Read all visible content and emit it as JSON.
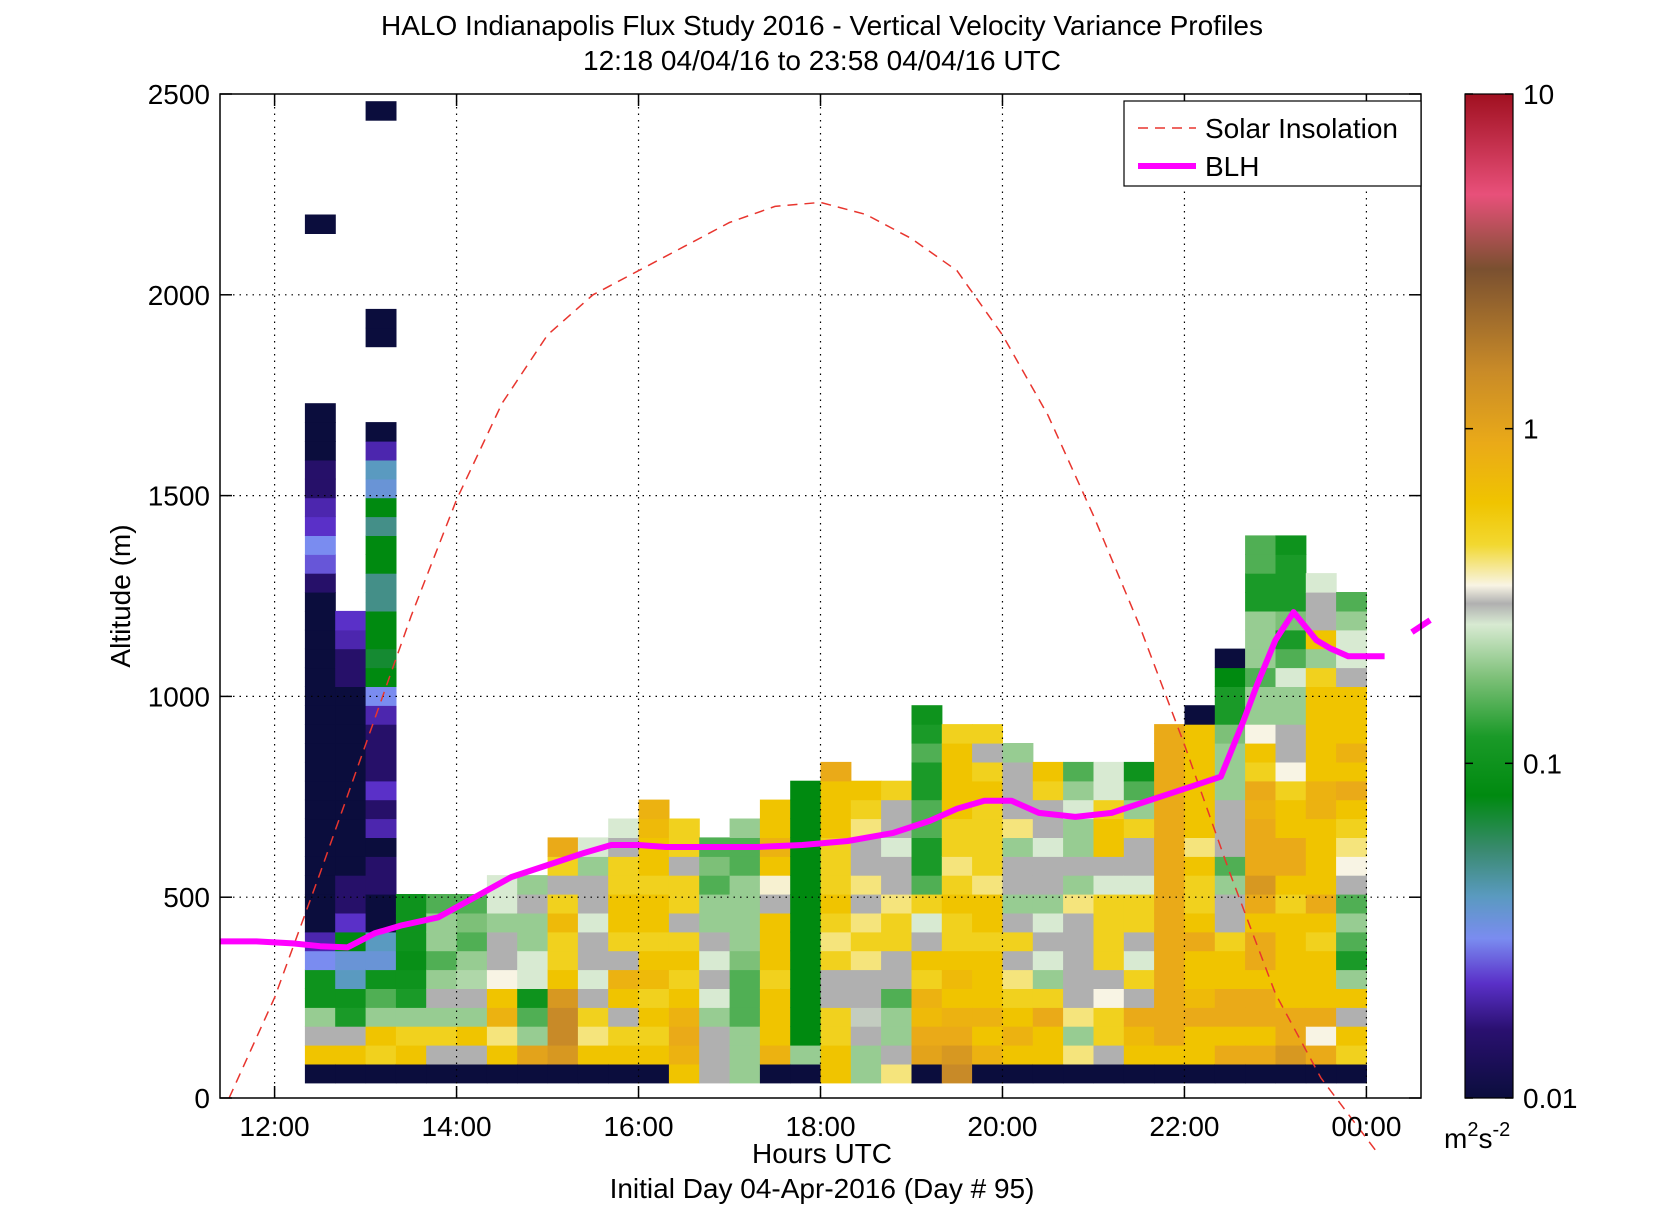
{
  "title": "HALO Indianapolis Flux Study 2016 - Vertical Velocity Variance Profiles",
  "subtitle": "12:18 04/04/16 to 23:58 04/04/16  UTC",
  "chart_data": {
    "type": "heatmap",
    "title": "HALO Indianapolis Flux Study 2016 - Vertical Velocity Variance Profiles",
    "subtitle": "12:18 04/04/16 to 23:58 04/04/16  UTC",
    "xlabel": "Hours UTC",
    "xlabel2": "Initial Day 04-Apr-2016 (Day # 95)",
    "ylabel": "Altitude (m)",
    "xlim": [
      11.4,
      24.6
    ],
    "ylim": [
      0,
      2500
    ],
    "grid": true,
    "x_ticks": [
      {
        "value": 12,
        "label": "12:00"
      },
      {
        "value": 14,
        "label": "14:00"
      },
      {
        "value": 16,
        "label": "16:00"
      },
      {
        "value": 18,
        "label": "18:00"
      },
      {
        "value": 20,
        "label": "20:00"
      },
      {
        "value": 22,
        "label": "22:00"
      },
      {
        "value": 24,
        "label": "00:00"
      }
    ],
    "y_ticks": [
      {
        "value": 0,
        "label": "0"
      },
      {
        "value": 500,
        "label": "500"
      },
      {
        "value": 1000,
        "label": "1000"
      },
      {
        "value": 1500,
        "label": "1500"
      },
      {
        "value": 2000,
        "label": "2000"
      },
      {
        "value": 2500,
        "label": "2500"
      }
    ],
    "colorbar": {
      "scale": "log",
      "range": [
        0.01,
        10
      ],
      "ticks": [
        {
          "value": 0.01,
          "label": "0.01"
        },
        {
          "value": 0.1,
          "label": "0.1"
        },
        {
          "value": 1,
          "label": "1"
        },
        {
          "value": 10,
          "label": "10"
        }
      ],
      "unit_base": "m",
      "unit_sup1": "2",
      "unit_mid": "s",
      "unit_sup2": "-2",
      "stops": [
        {
          "value": 0.01,
          "color": "#0b0d3d"
        },
        {
          "value": 0.016,
          "color": "#2a1070"
        },
        {
          "value": 0.022,
          "color": "#5a30c8"
        },
        {
          "value": 0.03,
          "color": "#7a8cf0"
        },
        {
          "value": 0.04,
          "color": "#5a9ac0"
        },
        {
          "value": 0.055,
          "color": "#3a8a70"
        },
        {
          "value": 0.08,
          "color": "#008a10"
        },
        {
          "value": 0.12,
          "color": "#1a9a28"
        },
        {
          "value": 0.18,
          "color": "#7dc078"
        },
        {
          "value": 0.26,
          "color": "#d8ead2"
        },
        {
          "value": 0.3,
          "color": "#b0b0b0"
        },
        {
          "value": 0.34,
          "color": "#f8f4e4"
        },
        {
          "value": 0.45,
          "color": "#f2d830"
        },
        {
          "value": 0.6,
          "color": "#f0c400"
        },
        {
          "value": 0.9,
          "color": "#eaaa18"
        },
        {
          "value": 1.5,
          "color": "#c88a28"
        },
        {
          "value": 3,
          "color": "#7a5030"
        },
        {
          "value": 5,
          "color": "#e8507a"
        },
        {
          "value": 10,
          "color": "#a01020"
        }
      ]
    },
    "cell_size": {
      "hours": 0.333,
      "meters": 47
    },
    "no_data": null,
    "columns": [
      {
        "t": 12.5,
        "v": [
          0.01,
          0.6,
          0.3,
          0.2,
          0.1,
          0.1,
          0.03,
          0.02,
          0.01,
          0.01,
          0.01,
          0.01,
          0.01,
          0.01,
          0.01,
          0.01,
          0.01,
          0.01,
          0.01,
          0.01,
          0.01,
          0.01,
          0.01,
          0.01,
          0.01,
          0.01,
          0.015,
          0.025,
          0.03,
          0.022,
          0.02,
          0.015,
          0.015,
          0.01,
          0.01,
          0.01,
          null,
          null,
          null,
          null,
          null,
          null,
          null,
          null,
          null,
          0.01
        ]
      },
      {
        "t": 12.833,
        "v": [
          0.01,
          0.6,
          0.3,
          0.12,
          0.1,
          0.04,
          0.035,
          0.08,
          0.022,
          0.015,
          0.015,
          0.01,
          0.01,
          0.01,
          0.01,
          0.01,
          0.01,
          0.01,
          0.01,
          0.01,
          0.01,
          0.015,
          0.015,
          0.02,
          0.022
        ]
      },
      {
        "t": 13.167,
        "v": [
          0.01,
          0.5,
          0.6,
          0.2,
          0.15,
          0.1,
          0.035,
          0.04,
          0.01,
          0.01,
          0.015,
          0.015,
          0.01,
          0.02,
          0.015,
          0.022,
          0.015,
          0.015,
          0.015,
          0.02,
          0.03,
          0.08,
          0.07,
          0.08,
          0.08,
          0.05,
          0.05,
          0.08,
          0.08,
          0.05,
          0.08,
          0.035,
          0.04,
          0.02,
          0.01,
          null,
          null,
          null,
          null,
          0.01,
          0.01,
          null,
          null,
          null,
          null,
          null,
          null,
          null,
          null,
          null,
          null,
          0.01
        ]
      },
      {
        "t": 13.5,
        "v": [
          0.01,
          0.6,
          0.5,
          0.2,
          0.12,
          0.1,
          0.09,
          0.1,
          0.1,
          0.1
        ]
      },
      {
        "t": 13.833,
        "v": [
          0.01,
          0.3,
          0.5,
          0.2,
          0.3,
          0.2,
          0.15,
          0.2,
          0.2,
          0.15
        ]
      },
      {
        "t": 14.167,
        "v": [
          0.01,
          0.3,
          0.6,
          0.2,
          0.3,
          0.22,
          0.2,
          0.15,
          0.18,
          0.15
        ]
      },
      {
        "t": 14.5,
        "v": [
          0.01,
          0.6,
          0.4,
          0.8,
          0.6,
          0.34,
          0.3,
          0.3,
          0.2,
          0.26,
          0.26
        ]
      },
      {
        "t": 14.833,
        "v": [
          0.01,
          1.0,
          0.2,
          0.15,
          0.1,
          0.26,
          0.26,
          0.2,
          0.2,
          0.3,
          0.2
        ]
      },
      {
        "t": 15.167,
        "v": [
          0.01,
          1.2,
          1.5,
          1.5,
          1.2,
          0.6,
          0.5,
          0.5,
          0.7,
          0.5,
          0.3,
          0.5,
          0.9
        ]
      },
      {
        "t": 15.5,
        "v": [
          0.01,
          0.6,
          0.4,
          0.5,
          0.3,
          0.26,
          0.3,
          0.3,
          0.26,
          0.3,
          0.3,
          0.2,
          0.26
        ]
      },
      {
        "t": 15.833,
        "v": [
          0.01,
          0.6,
          0.5,
          0.3,
          0.6,
          0.8,
          0.3,
          0.5,
          0.6,
          0.6,
          0.5,
          0.5,
          0.3,
          0.26
        ]
      },
      {
        "t": 16.167,
        "v": [
          0.01,
          0.6,
          0.5,
          0.6,
          0.5,
          0.7,
          0.6,
          0.5,
          0.6,
          0.6,
          0.5,
          0.6,
          0.6,
          0.7,
          0.8
        ]
      },
      {
        "t": 16.5,
        "v": [
          0.6,
          0.8,
          0.9,
          0.8,
          0.6,
          0.5,
          0.6,
          0.5,
          0.3,
          0.5,
          0.5,
          0.3,
          0.5,
          0.5
        ]
      },
      {
        "t": 16.833,
        "v": [
          0.3,
          0.3,
          0.3,
          0.2,
          0.26,
          0.3,
          0.26,
          0.3,
          0.2,
          0.2,
          0.15,
          0.18,
          0.15
        ]
      },
      {
        "t": 17.167,
        "v": [
          0.2,
          0.2,
          0.2,
          0.15,
          0.15,
          0.15,
          0.18,
          0.2,
          0.2,
          0.2,
          0.2,
          0.15,
          0.15,
          0.2
        ]
      },
      {
        "t": 17.5,
        "v": [
          0.01,
          0.8,
          0.6,
          0.6,
          0.6,
          0.5,
          0.6,
          0.6,
          0.6,
          0.3,
          0.35,
          0.6,
          0.8,
          0.6,
          0.6
        ]
      },
      {
        "t": 17.833,
        "v": [
          0.01,
          0.2,
          0.08,
          0.08,
          0.08,
          0.08,
          0.08,
          0.08,
          0.08,
          0.08,
          0.08,
          0.08,
          0.08,
          0.08,
          0.08,
          0.08
        ]
      },
      {
        "t": 18.167,
        "v": [
          0.6,
          0.6,
          0.5,
          0.5,
          0.3,
          0.3,
          0.5,
          0.4,
          0.5,
          0.6,
          0.5,
          0.5,
          0.5,
          0.6,
          0.6,
          0.6,
          0.9
        ]
      },
      {
        "t": 18.5,
        "v": [
          0.2,
          0.2,
          0.3,
          0.28,
          0.3,
          0.3,
          0.4,
          0.5,
          0.4,
          0.3,
          0.4,
          0.3,
          0.3,
          0.4,
          0.5,
          0.6
        ]
      },
      {
        "t": 18.833,
        "v": [
          0.4,
          0.3,
          0.2,
          0.2,
          0.15,
          0.3,
          0.3,
          0.5,
          0.5,
          0.4,
          0.3,
          0.3,
          0.26,
          0.3,
          0.3,
          0.5
        ]
      },
      {
        "t": 19.167,
        "v": [
          0.01,
          1.0,
          0.9,
          0.7,
          0.8,
          0.5,
          0.6,
          0.3,
          0.26,
          0.5,
          0.15,
          0.12,
          0.12,
          0.15,
          0.15,
          0.12,
          0.12,
          0.15,
          0.12,
          0.1
        ]
      },
      {
        "t": 19.5,
        "v": [
          1.5,
          1.2,
          0.9,
          0.8,
          0.6,
          0.7,
          0.6,
          0.5,
          0.5,
          0.6,
          0.5,
          0.4,
          0.5,
          0.5,
          0.6,
          0.6,
          0.6,
          0.6,
          0.5
        ]
      },
      {
        "t": 19.833,
        "v": [
          0.01,
          0.8,
          0.6,
          0.8,
          0.6,
          0.6,
          0.6,
          0.5,
          0.6,
          0.6,
          0.4,
          0.5,
          0.5,
          0.5,
          0.5,
          0.6,
          0.5,
          0.3,
          0.5
        ]
      },
      {
        "t": 20.167,
        "v": [
          0.01,
          0.6,
          0.8,
          0.6,
          0.5,
          0.4,
          0.3,
          0.5,
          0.3,
          0.2,
          0.3,
          0.3,
          0.2,
          0.4,
          0.3,
          0.3,
          0.3,
          0.2
        ]
      },
      {
        "t": 20.5,
        "v": [
          0.01,
          0.6,
          0.6,
          0.9,
          0.5,
          0.2,
          0.26,
          0.3,
          0.26,
          0.2,
          0.3,
          0.3,
          0.26,
          0.3,
          0.3,
          0.5,
          0.6
        ]
      },
      {
        "t": 20.833,
        "v": [
          0.01,
          0.4,
          0.2,
          0.4,
          0.3,
          0.3,
          0.3,
          0.3,
          0.3,
          0.4,
          0.2,
          0.3,
          0.2,
          0.2,
          0.26,
          0.2,
          0.15
        ]
      },
      {
        "t": 21.167,
        "v": [
          0.01,
          0.3,
          0.5,
          0.5,
          0.34,
          0.3,
          0.5,
          0.5,
          0.5,
          0.5,
          0.26,
          0.3,
          0.6,
          0.6,
          0.5,
          0.26,
          0.26
        ]
      },
      {
        "t": 21.5,
        "v": [
          0.01,
          0.6,
          0.7,
          0.9,
          0.3,
          0.5,
          0.26,
          0.3,
          0.5,
          0.5,
          0.26,
          0.3,
          0.3,
          0.5,
          0.2,
          0.15,
          0.1
        ]
      },
      {
        "t": 21.833,
        "v": [
          0.01,
          0.6,
          0.9,
          0.9,
          0.9,
          0.9,
          0.9,
          0.9,
          0.9,
          0.9,
          0.9,
          0.9,
          0.9,
          0.9,
          0.9,
          0.9,
          0.9,
          0.9,
          0.9
        ]
      },
      {
        "t": 22.167,
        "v": [
          0.01,
          0.6,
          0.6,
          0.9,
          0.7,
          0.6,
          0.6,
          0.9,
          0.6,
          0.5,
          0.5,
          0.6,
          0.4,
          0.6,
          0.6,
          0.6,
          0.6,
          0.6,
          0.6,
          0.01
        ]
      },
      {
        "t": 22.5,
        "v": [
          0.01,
          0.9,
          0.6,
          0.9,
          0.9,
          0.6,
          0.6,
          0.5,
          0.3,
          0.3,
          0.2,
          0.15,
          0.3,
          0.3,
          0.3,
          0.2,
          0.2,
          0.2,
          0.18,
          0.12,
          0.12,
          0.08,
          0.01
        ]
      },
      {
        "t": 22.833,
        "v": [
          0.01,
          0.9,
          0.6,
          0.9,
          0.9,
          0.6,
          0.9,
          0.9,
          0.6,
          0.9,
          1.2,
          0.9,
          0.9,
          0.9,
          0.8,
          0.9,
          0.5,
          0.6,
          0.34,
          0.2,
          0.2,
          0.15,
          0.2,
          0.2,
          0.2,
          0.12,
          0.12,
          0.15,
          0.15
        ]
      },
      {
        "t": 23.167,
        "v": [
          0.01,
          1.2,
          0.9,
          0.9,
          0.6,
          0.6,
          0.6,
          0.6,
          0.6,
          0.5,
          0.6,
          0.9,
          0.9,
          0.6,
          0.6,
          0.5,
          0.34,
          0.3,
          0.3,
          0.2,
          0.2,
          0.26,
          0.15,
          0.12,
          0.18,
          0.12,
          0.12,
          0.12,
          0.1
        ]
      },
      {
        "t": 23.5,
        "v": [
          0.01,
          0.9,
          0.34,
          0.9,
          0.6,
          0.6,
          0.6,
          0.5,
          0.6,
          0.9,
          0.6,
          0.6,
          0.6,
          0.6,
          0.8,
          0.8,
          0.6,
          0.6,
          0.6,
          0.6,
          0.6,
          0.5,
          0.2,
          0.6,
          0.3,
          0.3,
          0.26
        ]
      },
      {
        "t": 23.833,
        "v": [
          0.01,
          0.5,
          0.6,
          0.3,
          0.6,
          0.2,
          0.12,
          0.15,
          0.2,
          0.15,
          0.3,
          0.34,
          0.4,
          0.5,
          0.6,
          0.9,
          0.6,
          0.8,
          0.6,
          0.6,
          0.6,
          0.3,
          0.26,
          0.26,
          0.2,
          0.15
        ]
      }
    ],
    "series": [
      {
        "name": "Solar Insolation",
        "color": "#e8352e",
        "style": "dashed",
        "x": [
          11.5,
          12.0,
          12.5,
          13.0,
          13.5,
          14.0,
          14.5,
          15.0,
          15.5,
          16.0,
          16.5,
          17.0,
          17.5,
          18.0,
          18.5,
          19.0,
          19.5,
          20.0,
          20.5,
          21.0,
          21.5,
          22.0,
          22.5,
          23.0,
          23.5,
          24.0,
          24.1
        ],
        "y": [
          0,
          250,
          560,
          880,
          1200,
          1490,
          1730,
          1900,
          2000,
          2060,
          2120,
          2180,
          2220,
          2230,
          2200,
          2140,
          2060,
          1900,
          1700,
          1450,
          1180,
          880,
          560,
          260,
          50,
          -100,
          -130
        ]
      },
      {
        "name": "BLH",
        "color": "#ff00ff",
        "style": "solid",
        "x": [
          11.4,
          11.8,
          12.2,
          12.5,
          12.8,
          13.1,
          13.4,
          13.8,
          14.2,
          14.6,
          15.0,
          15.4,
          15.7,
          16.0,
          16.3,
          16.8,
          17.3,
          17.8,
          18.3,
          18.8,
          19.2,
          19.5,
          19.8,
          20.1,
          20.4,
          20.8,
          21.2,
          21.6,
          22.0,
          22.4,
          22.65,
          22.8,
          23.0,
          23.2,
          23.45,
          23.6,
          23.8,
          24.0,
          24.2
        ],
        "y": [
          390,
          390,
          385,
          378,
          375,
          410,
          430,
          450,
          500,
          550,
          580,
          610,
          630,
          630,
          625,
          625,
          625,
          630,
          640,
          660,
          690,
          720,
          740,
          740,
          710,
          700,
          710,
          740,
          770,
          800,
          940,
          1030,
          1140,
          1210,
          1140,
          1120,
          1100,
          1100,
          1100
        ]
      },
      {
        "name": "",
        "color": "#ff00ff",
        "style": "solid",
        "x": [
          24.5,
          24.7
        ],
        "y": [
          1160,
          1190
        ]
      }
    ],
    "legend": {
      "position": "top-right",
      "entries": [
        "Solar Insolation",
        "BLH"
      ]
    }
  }
}
